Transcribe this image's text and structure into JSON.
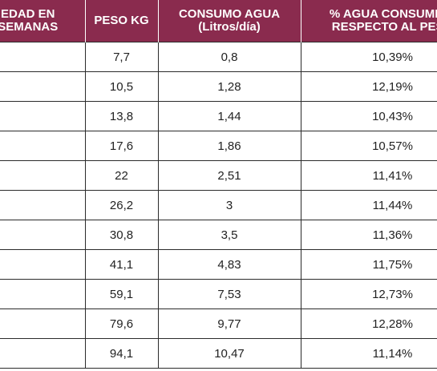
{
  "table": {
    "headers": [
      [
        "EDAD EN",
        "SEMANAS"
      ],
      [
        "PESO KG"
      ],
      [
        "CONSUMO AGUA",
        "(Litros/día)"
      ],
      [
        "% AGUA CONSUMIDA",
        "RESPECTO AL PESO"
      ]
    ],
    "rows": [
      [
        "",
        "7,7",
        "0,8",
        "10,39%"
      ],
      [
        "",
        "10,5",
        "1,28",
        "12,19%"
      ],
      [
        "",
        "13,8",
        "1,44",
        "10,43%"
      ],
      [
        "",
        "17,6",
        "1,86",
        "10,57%"
      ],
      [
        "",
        "22",
        "2,51",
        "11,41%"
      ],
      [
        "",
        "26,2",
        "3",
        "11,44%"
      ],
      [
        "",
        "30,8",
        "3,5",
        "11,36%"
      ],
      [
        "",
        "41,1",
        "4,83",
        "11,75%"
      ],
      [
        "",
        "59,1",
        "7,53",
        "12,73%"
      ],
      [
        "",
        "79,6",
        "9,77",
        "12,28%"
      ],
      [
        "",
        "94,1",
        "10,47",
        "11,14%"
      ]
    ]
  },
  "colors": {
    "header_bg": "#8a2b4e",
    "header_text": "#ffffff",
    "grid": "#2b2b2b",
    "cell_text": "#222222"
  }
}
